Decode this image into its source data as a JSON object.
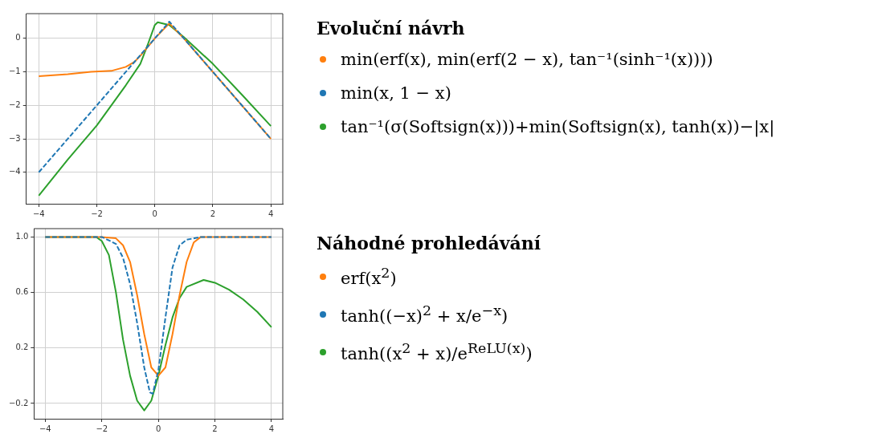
{
  "chart_data": [
    {
      "type": "line",
      "legend_title": "Evoluční návrh",
      "legend": "right",
      "grid": true,
      "xlim": [
        -4.43,
        4.41
      ],
      "ylim": [
        -4.94,
        0.74
      ],
      "xticks": [
        -4,
        -2,
        0,
        2,
        4
      ],
      "yticks": [
        -4,
        -3,
        -2,
        -1,
        0
      ],
      "series": [
        {
          "name": "min(erf(x), min(erf(2 − x), tan⁻¹(sinh⁻¹(x))))",
          "color": "#ff7f0e",
          "line_style": "solid",
          "x": [
            -4,
            -3,
            -2.2,
            -1.5,
            -1,
            -0.7,
            -0.5,
            0,
            0.5,
            1,
            2,
            3,
            4
          ],
          "values": [
            -1.13,
            -1.07,
            -1.0,
            -0.97,
            -0.85,
            -0.7,
            -0.52,
            0,
            0.45,
            0,
            -1,
            -2,
            -3
          ]
        },
        {
          "name": "min(x, 1 − x)",
          "color": "#1f77b4",
          "line_style": "dashed",
          "x": [
            -4,
            0.5,
            4
          ],
          "values": [
            -4,
            0.5,
            -3
          ]
        },
        {
          "name": "tan⁻¹(σ(Softsign(x)))+min(Softsign(x), tanh(x))−|x|",
          "color": "#2ca02c",
          "line_style": "solid",
          "x": [
            -4,
            -3,
            -2,
            -1,
            -0.5,
            -0.25,
            0,
            0.1,
            0.5,
            1,
            2,
            3,
            4
          ],
          "values": [
            -4.7,
            -3.62,
            -2.6,
            -1.4,
            -0.76,
            -0.2,
            0.4,
            0.48,
            0.4,
            0.04,
            -0.76,
            -1.68,
            -2.62
          ]
        }
      ]
    },
    {
      "type": "line",
      "legend_title": "Náhodné prohledávání",
      "legend": "right",
      "grid": true,
      "xlim": [
        -4.4,
        4.4
      ],
      "ylim": [
        -0.31,
        1.06
      ],
      "xticks": [
        -4,
        -2,
        0,
        2,
        4
      ],
      "yticks": [
        {
          "value": 1,
          "label": "1.0"
        },
        0.6,
        0.2,
        -0.2
      ],
      "series": [
        {
          "name": "erf(x$^{2}$)",
          "color": "#ff7f0e",
          "line_style": "solid",
          "x": [
            -4,
            -2,
            -1.5,
            -1.25,
            -1,
            -0.75,
            -0.5,
            -0.25,
            0,
            0.25,
            0.5,
            0.75,
            1,
            1.25,
            1.5,
            2,
            4
          ],
          "values": [
            1,
            1,
            0.99,
            0.94,
            0.82,
            0.58,
            0.3,
            0.06,
            0,
            0.06,
            0.3,
            0.58,
            0.82,
            0.96,
            1,
            1,
            1
          ]
        },
        {
          "name": "tanh((−x)$^{2}$ + x/e$^{−x}$)",
          "color": "#1f77b4",
          "line_style": "dashed",
          "x": [
            -4,
            -2,
            -1.5,
            -1.25,
            -1,
            -0.75,
            -0.5,
            -0.3,
            -0.2,
            0,
            0.25,
            0.5,
            0.75,
            1,
            1.5,
            4
          ],
          "values": [
            1,
            1,
            0.95,
            0.85,
            0.66,
            0.38,
            0.06,
            -0.12,
            -0.13,
            0.04,
            0.42,
            0.78,
            0.94,
            0.98,
            1,
            1
          ]
        },
        {
          "name": "tanh((x$^{2}$ + x)/e$^{ReLU(x)}$)",
          "color": "#2ca02c",
          "line_style": "solid",
          "x": [
            -4,
            -2.5,
            -2.2,
            -2,
            -1.75,
            -1.5,
            -1.25,
            -1,
            -0.75,
            -0.5,
            -0.25,
            0,
            0.25,
            0.5,
            0.75,
            1,
            1.6,
            2,
            2.5,
            3,
            3.5,
            4
          ],
          "values": [
            1,
            1,
            1,
            0.97,
            0.87,
            0.6,
            0.26,
            0,
            -0.18,
            -0.25,
            -0.18,
            0,
            0.22,
            0.42,
            0.56,
            0.64,
            0.69,
            0.67,
            0.62,
            0.55,
            0.46,
            0.35
          ]
        }
      ]
    }
  ]
}
